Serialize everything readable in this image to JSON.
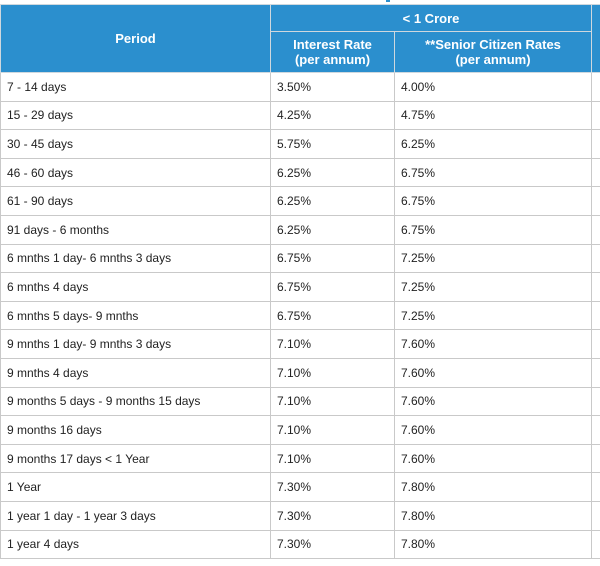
{
  "table": {
    "header": {
      "period": "Period",
      "group": "< 1 Crore",
      "interest_rate": "Interest Rate",
      "interest_rate_sub": "(per annum)",
      "senior_rate": "**Senior Citizen Rates",
      "senior_rate_sub": "(per annum)"
    },
    "rows": [
      {
        "period": "7 - 14 days",
        "rate": "3.50%",
        "senior": "4.00%"
      },
      {
        "period": "15 - 29 days",
        "rate": "4.25%",
        "senior": "4.75%"
      },
      {
        "period": "30 - 45 days",
        "rate": "5.75%",
        "senior": "6.25%"
      },
      {
        "period": "46 - 60 days",
        "rate": "6.25%",
        "senior": "6.75%"
      },
      {
        "period": "61 - 90 days",
        "rate": "6.25%",
        "senior": "6.75%"
      },
      {
        "period": "91 days - 6 months",
        "rate": "6.25%",
        "senior": "6.75%"
      },
      {
        "period": "6 mnths 1 day- 6 mnths 3 days",
        "rate": "6.75%",
        "senior": "7.25%"
      },
      {
        "period": "6 mnths 4 days",
        "rate": "6.75%",
        "senior": "7.25%"
      },
      {
        "period": "6 mnths 5 days- 9 mnths",
        "rate": "6.75%",
        "senior": "7.25%"
      },
      {
        "period": "9 mnths 1 day- 9 mnths 3 days",
        "rate": "7.10%",
        "senior": "7.60%"
      },
      {
        "period": "9 mnths 4 days",
        "rate": "7.10%",
        "senior": "7.60%"
      },
      {
        "period": "9 months 5 days - 9 months 15 days",
        "rate": "7.10%",
        "senior": "7.60%"
      },
      {
        "period": "9 months 16 days",
        "rate": "7.10%",
        "senior": "7.60%"
      },
      {
        "period": "9 months 17 days < 1 Year",
        "rate": "7.10%",
        "senior": "7.60%"
      },
      {
        "period": "1 Year",
        "rate": "7.30%",
        "senior": "7.80%"
      },
      {
        "period": "1 year 1 day - 1 year 3 days",
        "rate": "7.30%",
        "senior": "7.80%"
      },
      {
        "period": "1 year 4 days",
        "rate": "7.30%",
        "senior": "7.80%"
      }
    ]
  }
}
